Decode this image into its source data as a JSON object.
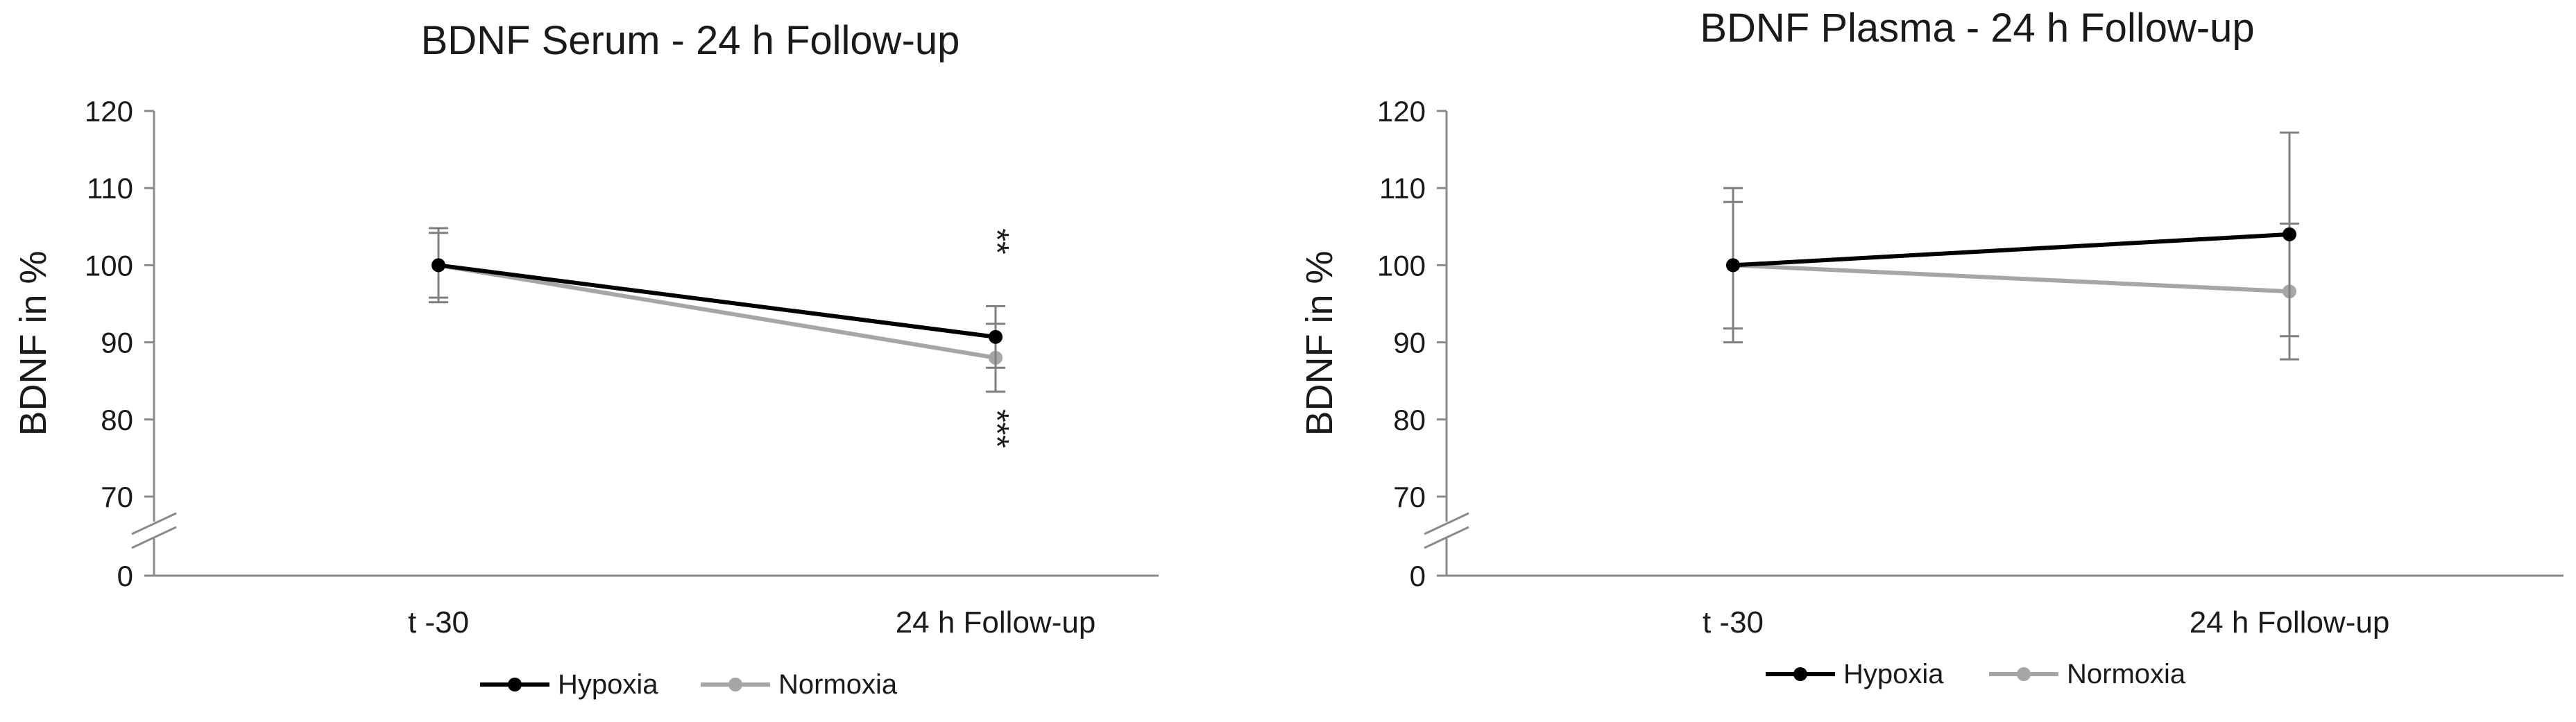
{
  "chart_data": [
    {
      "type": "line",
      "title": "BDNF Serum - 24 h Follow-up",
      "ylabel": "BDNF in %",
      "xlabel": "",
      "categories": [
        "t -30",
        "24 h Follow-up"
      ],
      "y_ticks": [
        "0",
        "70",
        "80",
        "90",
        "100",
        "110",
        "120"
      ],
      "axis_break": true,
      "ylim": [
        60,
        120
      ],
      "grid": false,
      "legend_position": "bottom",
      "series": [
        {
          "name": "Hypoxia",
          "color": "#000000",
          "values": [
            100,
            90.7
          ],
          "error": [
            4.2,
            4.0
          ]
        },
        {
          "name": "Normoxia",
          "color": "#a6a6a6",
          "values": [
            100,
            88.0
          ],
          "error": [
            4.8,
            4.4
          ]
        }
      ],
      "annotations": [
        {
          "text": "**",
          "category": "24 h Follow-up",
          "position": "above"
        },
        {
          "text": "***",
          "category": "24 h Follow-up",
          "position": "below"
        }
      ]
    },
    {
      "type": "line",
      "title": "BDNF Plasma - 24 h Follow-up",
      "ylabel": "BDNF in %",
      "xlabel": "",
      "categories": [
        "t -30",
        "24 h Follow-up"
      ],
      "y_ticks": [
        "0",
        "70",
        "80",
        "90",
        "100",
        "110",
        "120"
      ],
      "axis_break": true,
      "ylim": [
        60,
        120
      ],
      "grid": false,
      "legend_position": "bottom",
      "series": [
        {
          "name": "Hypoxia",
          "color": "#000000",
          "values": [
            100,
            104.0
          ],
          "error": [
            8.2,
            13.2
          ]
        },
        {
          "name": "Normoxia",
          "color": "#a6a6a6",
          "values": [
            100,
            96.6
          ],
          "error": [
            10.0,
            8.8
          ]
        }
      ],
      "annotations": []
    }
  ]
}
